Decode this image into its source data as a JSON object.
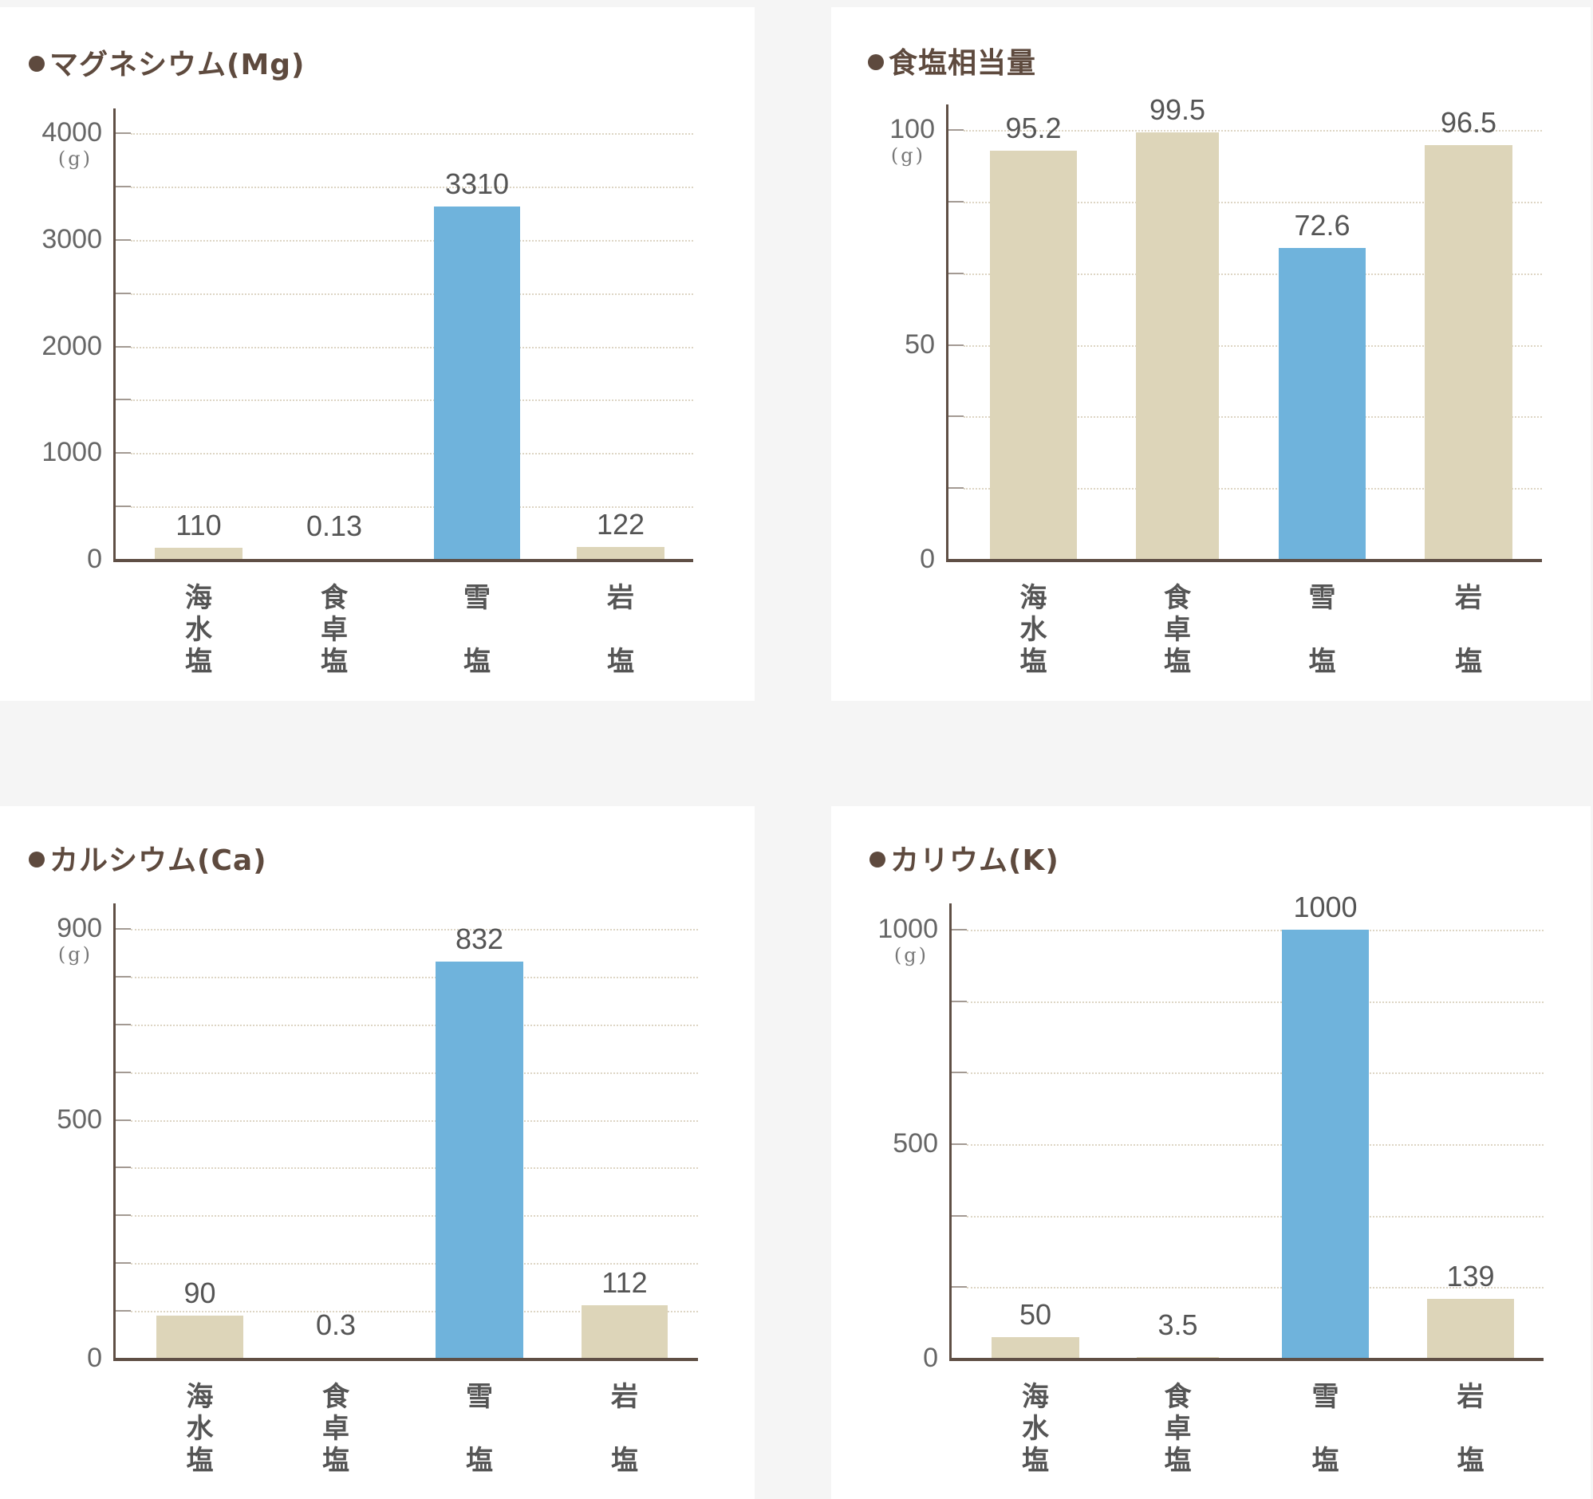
{
  "colors": {
    "background": "#f5f5f5",
    "panel": "#ffffff",
    "highlight_bar": "#6fb3dc",
    "normal_bar": "#ddd5b9",
    "axis": "#5f4f45",
    "title": "#5e4a3e"
  },
  "unit_label": "(g)",
  "categories": [
    "海水塩",
    "食卓塩",
    "雪塩",
    "岩塩"
  ],
  "category_lines": [
    [
      "海",
      "水",
      "塩"
    ],
    [
      "食",
      "卓",
      "塩"
    ],
    [
      "雪",
      "",
      "塩"
    ],
    [
      "岩",
      "",
      "塩"
    ]
  ],
  "charts": [
    {
      "title": "マグネシウム(Mg)",
      "yticks_labeled": [
        "4000",
        "3000",
        "2000",
        "1000",
        "0"
      ],
      "values": [
        "110",
        "0.13",
        "3310",
        "122"
      ]
    },
    {
      "title": "食塩相当量",
      "yticks_labeled": [
        "100",
        "50",
        "0"
      ],
      "values": [
        "95.2",
        "99.5",
        "72.6",
        "96.5"
      ]
    },
    {
      "title": "カルシウム(Ca)",
      "yticks_labeled": [
        "900",
        "500",
        "0"
      ],
      "values": [
        "90",
        "0.3",
        "832",
        "112"
      ]
    },
    {
      "title": "カリウム(K)",
      "yticks_labeled": [
        "1000",
        "500",
        "0"
      ],
      "values": [
        "50",
        "3.5",
        "1000",
        "139"
      ]
    }
  ],
  "chart_data": [
    {
      "type": "bar",
      "title": "マグネシウム(Mg)",
      "categories": [
        "海水塩",
        "食卓塩",
        "雪塩",
        "岩塩"
      ],
      "values": [
        110,
        0.13,
        3310,
        122
      ],
      "highlight": "雪塩",
      "xlabel": "",
      "ylabel": "(g)",
      "ylim": [
        0,
        4000
      ],
      "yticks": [
        0,
        500,
        1000,
        1500,
        2000,
        2500,
        3000,
        3500,
        4000
      ],
      "ytick_labels": [
        "0",
        "1000",
        "2000",
        "3000",
        "4000"
      ],
      "grid": true,
      "legend": null
    },
    {
      "type": "bar",
      "title": "食塩相当量",
      "categories": [
        "海水塩",
        "食卓塩",
        "雪塩",
        "岩塩"
      ],
      "values": [
        95.2,
        99.5,
        72.6,
        96.5
      ],
      "highlight": "雪塩",
      "xlabel": "",
      "ylabel": "(g)",
      "ylim": [
        0,
        100
      ],
      "yticks": [
        0,
        16.67,
        33.33,
        50,
        66.67,
        83.33,
        100
      ],
      "ytick_labels": [
        "0",
        "50",
        "100"
      ],
      "grid": true,
      "legend": null
    },
    {
      "type": "bar",
      "title": "カルシウム(Ca)",
      "categories": [
        "海水塩",
        "食卓塩",
        "雪塩",
        "岩塩"
      ],
      "values": [
        90,
        0.3,
        832,
        112
      ],
      "highlight": "雪塩",
      "xlabel": "",
      "ylabel": "(g)",
      "ylim": [
        0,
        900
      ],
      "yticks": [
        0,
        100,
        200,
        300,
        400,
        500,
        600,
        700,
        800,
        900
      ],
      "ytick_labels": [
        "0",
        "500",
        "900"
      ],
      "grid": true,
      "legend": null
    },
    {
      "type": "bar",
      "title": "カリウム(K)",
      "categories": [
        "海水塩",
        "食卓塩",
        "雪塩",
        "岩塩"
      ],
      "values": [
        50,
        3.5,
        1000,
        139
      ],
      "highlight": "雪塩",
      "xlabel": "",
      "ylabel": "(g)",
      "ylim": [
        0,
        1000
      ],
      "yticks": [
        0,
        166.67,
        333.33,
        500,
        666.67,
        833.33,
        1000
      ],
      "ytick_labels": [
        "0",
        "500",
        "1000"
      ],
      "grid": true,
      "legend": null
    }
  ]
}
